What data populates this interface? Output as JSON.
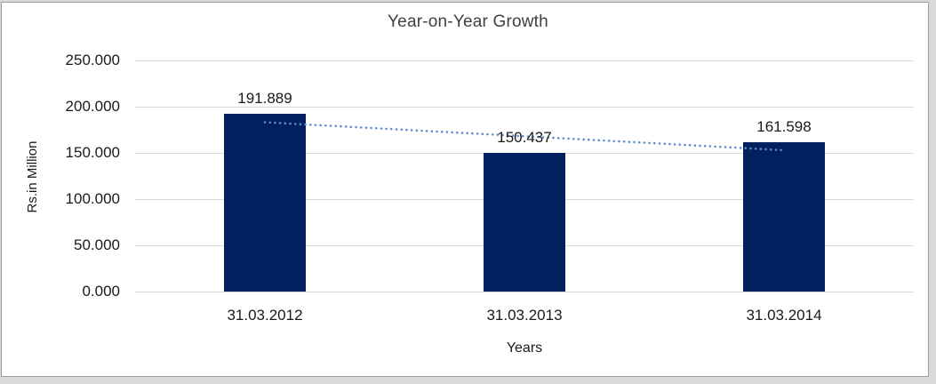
{
  "frame": {
    "outer_background": "#d9d9d9",
    "canvas_background": "#ffffff",
    "canvas_border": "#9e9e9e"
  },
  "chart_data": {
    "type": "bar",
    "title": "Year-on-Year Growth",
    "xlabel": "Years",
    "ylabel": "Rs.in Million",
    "categories": [
      "31.03.2012",
      "31.03.2013",
      "31.03.2014"
    ],
    "values": [
      191.889,
      150.437,
      161.598
    ],
    "data_labels": [
      "191.889",
      "150.437",
      "161.598"
    ],
    "yticks": [
      "0.000",
      "50.000",
      "100.000",
      "150.000",
      "200.000",
      "250.000"
    ],
    "ylim": [
      0,
      250
    ],
    "ytick_step": 50,
    "grid": "horizontal",
    "legend": "none",
    "trendline": {
      "type": "linear",
      "style": "dotted",
      "color": "#5b8bd0"
    },
    "colors": {
      "bar": "#00215e",
      "trendline": "#5b8bd0",
      "gridline": "#d9d9d9",
      "text": "#1a1a1a",
      "title_text": "#404040"
    }
  }
}
